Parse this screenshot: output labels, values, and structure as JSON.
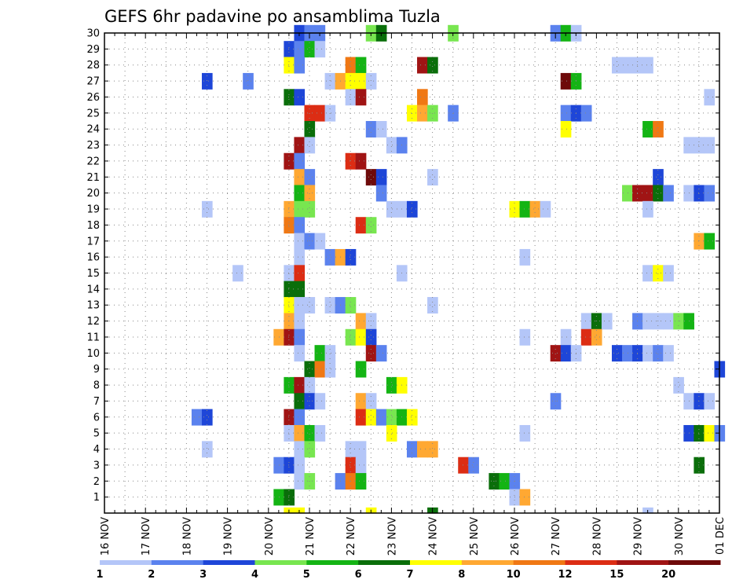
{
  "chart_data": {
    "type": "heatmap",
    "title": "GEFS 6hr padavine po ansamblima Tuzla",
    "x_tick_labels": [
      "16 NOV",
      "17 NOV",
      "18 NOV",
      "19 NOV",
      "20 NOV",
      "21 NOV",
      "22 NOV",
      "23 NOV",
      "24 NOV",
      "25 NOV",
      "26 NOV",
      "27 NOV",
      "28 NOV",
      "29 NOV",
      "30 NOV",
      "01 DEC"
    ],
    "y_tick_labels": [
      "1",
      "2",
      "3",
      "4",
      "5",
      "6",
      "7",
      "8",
      "9",
      "10",
      "11",
      "12",
      "13",
      "14",
      "15",
      "16",
      "17",
      "18",
      "19",
      "20",
      "21",
      "22",
      "23",
      "24",
      "25",
      "26",
      "27",
      "28",
      "29",
      "30"
    ],
    "x_range_steps": [
      0,
      60
    ],
    "y_range_members": [
      0,
      30
    ],
    "grid": true,
    "colorbar": {
      "labels": [
        "1",
        "2",
        "3",
        "4",
        "5",
        "6",
        "7",
        "8",
        "10",
        "12",
        "15",
        "20"
      ],
      "colors": [
        "#b4c6f8",
        "#5b82ee",
        "#1e46d8",
        "#78e650",
        "#14b414",
        "#0a6e0a",
        "#ffff00",
        "#ffa832",
        "#f07814",
        "#dc2d14",
        "#a01414",
        "#6e0a0a"
      ]
    },
    "cells": [
      {
        "member": 30,
        "step": 19,
        "level": 3
      },
      {
        "member": 30,
        "step": 20,
        "level": 2
      },
      {
        "member": 30,
        "step": 21,
        "level": 2
      },
      {
        "member": 30,
        "step": 26,
        "level": 4
      },
      {
        "member": 30,
        "step": 27,
        "level": 6
      },
      {
        "member": 30,
        "step": 34,
        "level": 4
      },
      {
        "member": 30,
        "step": 44,
        "level": 2
      },
      {
        "member": 30,
        "step": 45,
        "level": 5
      },
      {
        "member": 30,
        "step": 46,
        "level": 1
      },
      {
        "member": 29,
        "step": 18,
        "level": 3
      },
      {
        "member": 29,
        "step": 19,
        "level": 2
      },
      {
        "member": 29,
        "step": 20,
        "level": 5
      },
      {
        "member": 29,
        "step": 21,
        "level": 1
      },
      {
        "member": 28,
        "step": 18,
        "level": 7
      },
      {
        "member": 28,
        "step": 19,
        "level": 2
      },
      {
        "member": 28,
        "step": 24,
        "level": 9
      },
      {
        "member": 28,
        "step": 25,
        "level": 5
      },
      {
        "member": 28,
        "step": 31,
        "level": 11
      },
      {
        "member": 28,
        "step": 32,
        "level": 6
      },
      {
        "member": 28,
        "step": 50,
        "level": 1
      },
      {
        "member": 28,
        "step": 51,
        "level": 1
      },
      {
        "member": 28,
        "step": 52,
        "level": 1
      },
      {
        "member": 28,
        "step": 53,
        "level": 1
      },
      {
        "member": 27,
        "step": 10,
        "level": 3
      },
      {
        "member": 27,
        "step": 14,
        "level": 2
      },
      {
        "member": 27,
        "step": 22,
        "level": 1
      },
      {
        "member": 27,
        "step": 23,
        "level": 8
      },
      {
        "member": 27,
        "step": 24,
        "level": 7
      },
      {
        "member": 27,
        "step": 25,
        "level": 7
      },
      {
        "member": 27,
        "step": 26,
        "level": 1
      },
      {
        "member": 27,
        "step": 45,
        "level": 12
      },
      {
        "member": 27,
        "step": 46,
        "level": 5
      },
      {
        "member": 26,
        "step": 18,
        "level": 6
      },
      {
        "member": 26,
        "step": 19,
        "level": 3
      },
      {
        "member": 26,
        "step": 24,
        "level": 1
      },
      {
        "member": 26,
        "step": 25,
        "level": 11
      },
      {
        "member": 26,
        "step": 31,
        "level": 9
      },
      {
        "member": 26,
        "step": 59,
        "level": 1
      },
      {
        "member": 25,
        "step": 20,
        "level": 10
      },
      {
        "member": 25,
        "step": 21,
        "level": 10
      },
      {
        "member": 25,
        "step": 22,
        "level": 1
      },
      {
        "member": 25,
        "step": 30,
        "level": 7
      },
      {
        "member": 25,
        "step": 31,
        "level": 8
      },
      {
        "member": 25,
        "step": 32,
        "level": 4
      },
      {
        "member": 25,
        "step": 34,
        "level": 2
      },
      {
        "member": 25,
        "step": 45,
        "level": 2
      },
      {
        "member": 25,
        "step": 46,
        "level": 3
      },
      {
        "member": 25,
        "step": 47,
        "level": 2
      },
      {
        "member": 24,
        "step": 20,
        "level": 6
      },
      {
        "member": 24,
        "step": 26,
        "level": 2
      },
      {
        "member": 24,
        "step": 27,
        "level": 1
      },
      {
        "member": 24,
        "step": 45,
        "level": 7
      },
      {
        "member": 24,
        "step": 53,
        "level": 5
      },
      {
        "member": 24,
        "step": 54,
        "level": 9
      },
      {
        "member": 23,
        "step": 19,
        "level": 11
      },
      {
        "member": 23,
        "step": 20,
        "level": 1
      },
      {
        "member": 23,
        "step": 28,
        "level": 1
      },
      {
        "member": 23,
        "step": 29,
        "level": 2
      },
      {
        "member": 23,
        "step": 57,
        "level": 1
      },
      {
        "member": 23,
        "step": 58,
        "level": 1
      },
      {
        "member": 23,
        "step": 59,
        "level": 1
      },
      {
        "member": 22,
        "step": 18,
        "level": 11
      },
      {
        "member": 22,
        "step": 19,
        "level": 2
      },
      {
        "member": 22,
        "step": 24,
        "level": 10
      },
      {
        "member": 22,
        "step": 25,
        "level": 11
      },
      {
        "member": 21,
        "step": 19,
        "level": 8
      },
      {
        "member": 21,
        "step": 20,
        "level": 2
      },
      {
        "member": 21,
        "step": 26,
        "level": 12
      },
      {
        "member": 21,
        "step": 27,
        "level": 3
      },
      {
        "member": 21,
        "step": 32,
        "level": 1
      },
      {
        "member": 21,
        "step": 54,
        "level": 3
      },
      {
        "member": 20,
        "step": 19,
        "level": 5
      },
      {
        "member": 20,
        "step": 20,
        "level": 8
      },
      {
        "member": 20,
        "step": 27,
        "level": 2
      },
      {
        "member": 20,
        "step": 51,
        "level": 4
      },
      {
        "member": 20,
        "step": 52,
        "level": 11
      },
      {
        "member": 20,
        "step": 53,
        "level": 11
      },
      {
        "member": 20,
        "step": 54,
        "level": 6
      },
      {
        "member": 20,
        "step": 55,
        "level": 2
      },
      {
        "member": 20,
        "step": 57,
        "level": 1
      },
      {
        "member": 20,
        "step": 58,
        "level": 3
      },
      {
        "member": 20,
        "step": 59,
        "level": 2
      },
      {
        "member": 19,
        "step": 10,
        "level": 1
      },
      {
        "member": 19,
        "step": 18,
        "level": 8
      },
      {
        "member": 19,
        "step": 19,
        "level": 4
      },
      {
        "member": 19,
        "step": 20,
        "level": 4
      },
      {
        "member": 19,
        "step": 28,
        "level": 1
      },
      {
        "member": 19,
        "step": 29,
        "level": 1
      },
      {
        "member": 19,
        "step": 30,
        "level": 3
      },
      {
        "member": 19,
        "step": 40,
        "level": 7
      },
      {
        "member": 19,
        "step": 41,
        "level": 5
      },
      {
        "member": 19,
        "step": 42,
        "level": 8
      },
      {
        "member": 19,
        "step": 43,
        "level": 1
      },
      {
        "member": 19,
        "step": 53,
        "level": 1
      },
      {
        "member": 18,
        "step": 18,
        "level": 9
      },
      {
        "member": 18,
        "step": 19,
        "level": 2
      },
      {
        "member": 18,
        "step": 25,
        "level": 10
      },
      {
        "member": 18,
        "step": 26,
        "level": 4
      },
      {
        "member": 17,
        "step": 19,
        "level": 1
      },
      {
        "member": 17,
        "step": 20,
        "level": 2
      },
      {
        "member": 17,
        "step": 21,
        "level": 1
      },
      {
        "member": 17,
        "step": 58,
        "level": 8
      },
      {
        "member": 17,
        "step": 59,
        "level": 5
      },
      {
        "member": 16,
        "step": 19,
        "level": 1
      },
      {
        "member": 16,
        "step": 22,
        "level": 2
      },
      {
        "member": 16,
        "step": 23,
        "level": 8
      },
      {
        "member": 16,
        "step": 24,
        "level": 3
      },
      {
        "member": 16,
        "step": 41,
        "level": 1
      },
      {
        "member": 15,
        "step": 18,
        "level": 1
      },
      {
        "member": 15,
        "step": 19,
        "level": 10
      },
      {
        "member": 15,
        "step": 13,
        "level": 1
      },
      {
        "member": 15,
        "step": 29,
        "level": 1
      },
      {
        "member": 15,
        "step": 53,
        "level": 1
      },
      {
        "member": 15,
        "step": 54,
        "level": 7
      },
      {
        "member": 15,
        "step": 55,
        "level": 1
      },
      {
        "member": 14,
        "step": 18,
        "level": 6
      },
      {
        "member": 14,
        "step": 19,
        "level": 6
      },
      {
        "member": 13,
        "step": 18,
        "level": 7
      },
      {
        "member": 13,
        "step": 19,
        "level": 1
      },
      {
        "member": 13,
        "step": 20,
        "level": 1
      },
      {
        "member": 13,
        "step": 22,
        "level": 1
      },
      {
        "member": 13,
        "step": 23,
        "level": 2
      },
      {
        "member": 13,
        "step": 24,
        "level": 4
      },
      {
        "member": 13,
        "step": 32,
        "level": 1
      },
      {
        "member": 12,
        "step": 18,
        "level": 8
      },
      {
        "member": 12,
        "step": 19,
        "level": 1
      },
      {
        "member": 12,
        "step": 25,
        "level": 8
      },
      {
        "member": 12,
        "step": 26,
        "level": 1
      },
      {
        "member": 12,
        "step": 47,
        "level": 1
      },
      {
        "member": 12,
        "step": 48,
        "level": 6
      },
      {
        "member": 12,
        "step": 49,
        "level": 1
      },
      {
        "member": 12,
        "step": 52,
        "level": 2
      },
      {
        "member": 12,
        "step": 53,
        "level": 1
      },
      {
        "member": 12,
        "step": 54,
        "level": 1
      },
      {
        "member": 12,
        "step": 55,
        "level": 1
      },
      {
        "member": 12,
        "step": 56,
        "level": 4
      },
      {
        "member": 12,
        "step": 57,
        "level": 5
      },
      {
        "member": 11,
        "step": 17,
        "level": 8
      },
      {
        "member": 11,
        "step": 18,
        "level": 11
      },
      {
        "member": 11,
        "step": 19,
        "level": 2
      },
      {
        "member": 11,
        "step": 24,
        "level": 4
      },
      {
        "member": 11,
        "step": 25,
        "level": 7
      },
      {
        "member": 11,
        "step": 26,
        "level": 3
      },
      {
        "member": 11,
        "step": 41,
        "level": 1
      },
      {
        "member": 11,
        "step": 45,
        "level": 1
      },
      {
        "member": 11,
        "step": 47,
        "level": 10
      },
      {
        "member": 11,
        "step": 48,
        "level": 8
      },
      {
        "member": 10,
        "step": 19,
        "level": 1
      },
      {
        "member": 10,
        "step": 21,
        "level": 5
      },
      {
        "member": 10,
        "step": 22,
        "level": 1
      },
      {
        "member": 10,
        "step": 26,
        "level": 11
      },
      {
        "member": 10,
        "step": 27,
        "level": 2
      },
      {
        "member": 10,
        "step": 44,
        "level": 11
      },
      {
        "member": 10,
        "step": 45,
        "level": 3
      },
      {
        "member": 10,
        "step": 46,
        "level": 1
      },
      {
        "member": 10,
        "step": 50,
        "level": 3
      },
      {
        "member": 10,
        "step": 51,
        "level": 2
      },
      {
        "member": 10,
        "step": 52,
        "level": 3
      },
      {
        "member": 10,
        "step": 53,
        "level": 1
      },
      {
        "member": 10,
        "step": 54,
        "level": 2
      },
      {
        "member": 10,
        "step": 55,
        "level": 1
      },
      {
        "member": 9,
        "step": 20,
        "level": 6
      },
      {
        "member": 9,
        "step": 21,
        "level": 9
      },
      {
        "member": 9,
        "step": 22,
        "level": 1
      },
      {
        "member": 9,
        "step": 25,
        "level": 5
      },
      {
        "member": 9,
        "step": 60,
        "level": 3
      },
      {
        "member": 8,
        "step": 18,
        "level": 5
      },
      {
        "member": 8,
        "step": 19,
        "level": 11
      },
      {
        "member": 8,
        "step": 20,
        "level": 1
      },
      {
        "member": 8,
        "step": 28,
        "level": 5
      },
      {
        "member": 8,
        "step": 29,
        "level": 7
      },
      {
        "member": 8,
        "step": 56,
        "level": 1
      },
      {
        "member": 7,
        "step": 19,
        "level": 6
      },
      {
        "member": 7,
        "step": 20,
        "level": 3
      },
      {
        "member": 7,
        "step": 21,
        "level": 1
      },
      {
        "member": 7,
        "step": 25,
        "level": 8
      },
      {
        "member": 7,
        "step": 26,
        "level": 1
      },
      {
        "member": 7,
        "step": 44,
        "level": 2
      },
      {
        "member": 7,
        "step": 57,
        "level": 1
      },
      {
        "member": 7,
        "step": 58,
        "level": 3
      },
      {
        "member": 7,
        "step": 59,
        "level": 1
      },
      {
        "member": 6,
        "step": 9,
        "level": 2
      },
      {
        "member": 6,
        "step": 10,
        "level": 3
      },
      {
        "member": 6,
        "step": 18,
        "level": 11
      },
      {
        "member": 6,
        "step": 19,
        "level": 2
      },
      {
        "member": 6,
        "step": 25,
        "level": 10
      },
      {
        "member": 6,
        "step": 26,
        "level": 7
      },
      {
        "member": 6,
        "step": 27,
        "level": 2
      },
      {
        "member": 6,
        "step": 28,
        "level": 4
      },
      {
        "member": 6,
        "step": 29,
        "level": 5
      },
      {
        "member": 6,
        "step": 30,
        "level": 7
      },
      {
        "member": 5,
        "step": 18,
        "level": 1
      },
      {
        "member": 5,
        "step": 19,
        "level": 8
      },
      {
        "member": 5,
        "step": 20,
        "level": 5
      },
      {
        "member": 5,
        "step": 21,
        "level": 1
      },
      {
        "member": 5,
        "step": 28,
        "level": 7
      },
      {
        "member": 5,
        "step": 41,
        "level": 1
      },
      {
        "member": 5,
        "step": 57,
        "level": 3
      },
      {
        "member": 5,
        "step": 58,
        "level": 6
      },
      {
        "member": 5,
        "step": 59,
        "level": 7
      },
      {
        "member": 5,
        "step": 60,
        "level": 2
      },
      {
        "member": 4,
        "step": 10,
        "level": 1
      },
      {
        "member": 4,
        "step": 19,
        "level": 1
      },
      {
        "member": 4,
        "step": 20,
        "level": 4
      },
      {
        "member": 4,
        "step": 24,
        "level": 1
      },
      {
        "member": 4,
        "step": 25,
        "level": 1
      },
      {
        "member": 4,
        "step": 30,
        "level": 2
      },
      {
        "member": 4,
        "step": 31,
        "level": 8
      },
      {
        "member": 4,
        "step": 32,
        "level": 8
      },
      {
        "member": 3,
        "step": 17,
        "level": 2
      },
      {
        "member": 3,
        "step": 18,
        "level": 3
      },
      {
        "member": 3,
        "step": 19,
        "level": 1
      },
      {
        "member": 3,
        "step": 24,
        "level": 10
      },
      {
        "member": 3,
        "step": 25,
        "level": 1
      },
      {
        "member": 3,
        "step": 35,
        "level": 10
      },
      {
        "member": 3,
        "step": 36,
        "level": 2
      },
      {
        "member": 3,
        "step": 58,
        "level": 6
      },
      {
        "member": 2,
        "step": 19,
        "level": 1
      },
      {
        "member": 2,
        "step": 20,
        "level": 4
      },
      {
        "member": 2,
        "step": 23,
        "level": 2
      },
      {
        "member": 2,
        "step": 24,
        "level": 9
      },
      {
        "member": 2,
        "step": 25,
        "level": 5
      },
      {
        "member": 2,
        "step": 38,
        "level": 6
      },
      {
        "member": 2,
        "step": 39,
        "level": 5
      },
      {
        "member": 2,
        "step": 40,
        "level": 2
      },
      {
        "member": 1,
        "step": 17,
        "level": 5
      },
      {
        "member": 1,
        "step": 18,
        "level": 6
      },
      {
        "member": 1,
        "step": 40,
        "level": 1
      },
      {
        "member": 1,
        "step": 41,
        "level": 8
      },
      {
        "member": 0,
        "step": 18,
        "level": 7
      },
      {
        "member": 0,
        "step": 19,
        "level": 7
      },
      {
        "member": 0,
        "step": 26,
        "level": 7
      },
      {
        "member": 0,
        "step": 32,
        "level": 6
      },
      {
        "member": 0,
        "step": 53,
        "level": 1
      }
    ]
  }
}
